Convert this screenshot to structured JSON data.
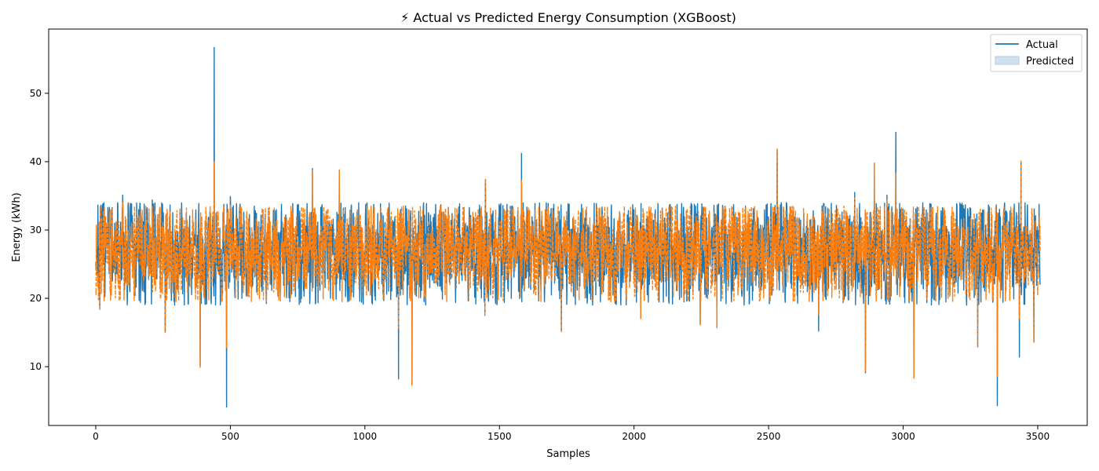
{
  "chart_data": {
    "type": "line",
    "title": "⚡ Actual vs Predicted Energy Consumption (XGBoost)",
    "xlabel": "Samples",
    "ylabel": "Energy (kWh)",
    "xlim": [
      -175,
      3684
    ],
    "ylim": [
      1.4,
      59.4
    ],
    "xticks": [
      0,
      500,
      1000,
      1500,
      2000,
      2500,
      3000,
      3500
    ],
    "yticks": [
      10,
      20,
      30,
      40,
      50
    ],
    "legend_position": "top-right",
    "grid": false,
    "n_samples": 3510,
    "series": [
      {
        "name": "Actual",
        "color": "#1f77b4",
        "line_style": "solid",
        "legend_marker": "line",
        "baseline": 27,
        "typical_range": [
          19,
          34
        ],
        "noise_seed": 7,
        "spikes": [
          {
            "x": 440,
            "y": 56.7
          },
          {
            "x": 486,
            "y": 4.1
          },
          {
            "x": 1125,
            "y": 8.2
          },
          {
            "x": 1582,
            "y": 41.2
          },
          {
            "x": 2973,
            "y": 44.3
          },
          {
            "x": 3350,
            "y": 4.3
          },
          {
            "x": 3432,
            "y": 11.4
          },
          {
            "x": 2686,
            "y": 15.2
          },
          {
            "x": 805,
            "y": 39.0
          },
          {
            "x": 905,
            "y": 38.5
          },
          {
            "x": 1448,
            "y": 37.4
          },
          {
            "x": 2532,
            "y": 41.8
          },
          {
            "x": 2893,
            "y": 39.6
          },
          {
            "x": 3438,
            "y": 39.9
          },
          {
            "x": 388,
            "y": 10.1
          },
          {
            "x": 1175,
            "y": 7.4
          },
          {
            "x": 3040,
            "y": 8.4
          },
          {
            "x": 2860,
            "y": 9.1
          },
          {
            "x": 3277,
            "y": 12.9
          },
          {
            "x": 3486,
            "y": 13.6
          },
          {
            "x": 258,
            "y": 15.1
          },
          {
            "x": 1730,
            "y": 15.2
          },
          {
            "x": 2308,
            "y": 15.7
          },
          {
            "x": 2246,
            "y": 16.2
          },
          {
            "x": 1446,
            "y": 17.5
          },
          {
            "x": 2025,
            "y": 17.1
          },
          {
            "x": 15,
            "y": 18.4
          },
          {
            "x": 100,
            "y": 35.1
          },
          {
            "x": 210,
            "y": 34.4
          },
          {
            "x": 500,
            "y": 34.9
          },
          {
            "x": 2820,
            "y": 35.5
          },
          {
            "x": 2940,
            "y": 35.1
          }
        ]
      },
      {
        "name": "Predicted",
        "color": "#ff7f0e",
        "line_style": "dashed",
        "legend_marker": "patch",
        "legend_patch_color": "#cfe0ef",
        "baseline": 27,
        "typical_range": [
          19.5,
          33.5
        ],
        "noise_seed": 13,
        "spikes": [
          {
            "x": 440,
            "y": 40.0
          },
          {
            "x": 486,
            "y": 12.8
          },
          {
            "x": 1125,
            "y": 15.6
          },
          {
            "x": 1582,
            "y": 37.3
          },
          {
            "x": 2973,
            "y": 38.3
          },
          {
            "x": 3350,
            "y": 8.6
          },
          {
            "x": 3432,
            "y": 16.9
          },
          {
            "x": 2686,
            "y": 17.5
          },
          {
            "x": 805,
            "y": 38.7
          },
          {
            "x": 905,
            "y": 38.8
          },
          {
            "x": 1448,
            "y": 37.5
          },
          {
            "x": 2532,
            "y": 42.0
          },
          {
            "x": 2893,
            "y": 39.8
          },
          {
            "x": 3438,
            "y": 40.1
          },
          {
            "x": 388,
            "y": 9.9
          },
          {
            "x": 1175,
            "y": 7.3
          },
          {
            "x": 3040,
            "y": 8.3
          },
          {
            "x": 2860,
            "y": 9.2
          },
          {
            "x": 3277,
            "y": 13.0
          },
          {
            "x": 3486,
            "y": 13.5
          },
          {
            "x": 258,
            "y": 15.0
          },
          {
            "x": 1730,
            "y": 15.1
          },
          {
            "x": 2308,
            "y": 15.7
          },
          {
            "x": 2246,
            "y": 16.1
          },
          {
            "x": 1446,
            "y": 17.4
          },
          {
            "x": 2025,
            "y": 17.0
          },
          {
            "x": 15,
            "y": 18.3
          },
          {
            "x": 100,
            "y": 34.0
          },
          {
            "x": 210,
            "y": 33.5
          },
          {
            "x": 500,
            "y": 33.8
          },
          {
            "x": 2820,
            "y": 34.7
          },
          {
            "x": 2940,
            "y": 34.4
          }
        ]
      }
    ]
  }
}
